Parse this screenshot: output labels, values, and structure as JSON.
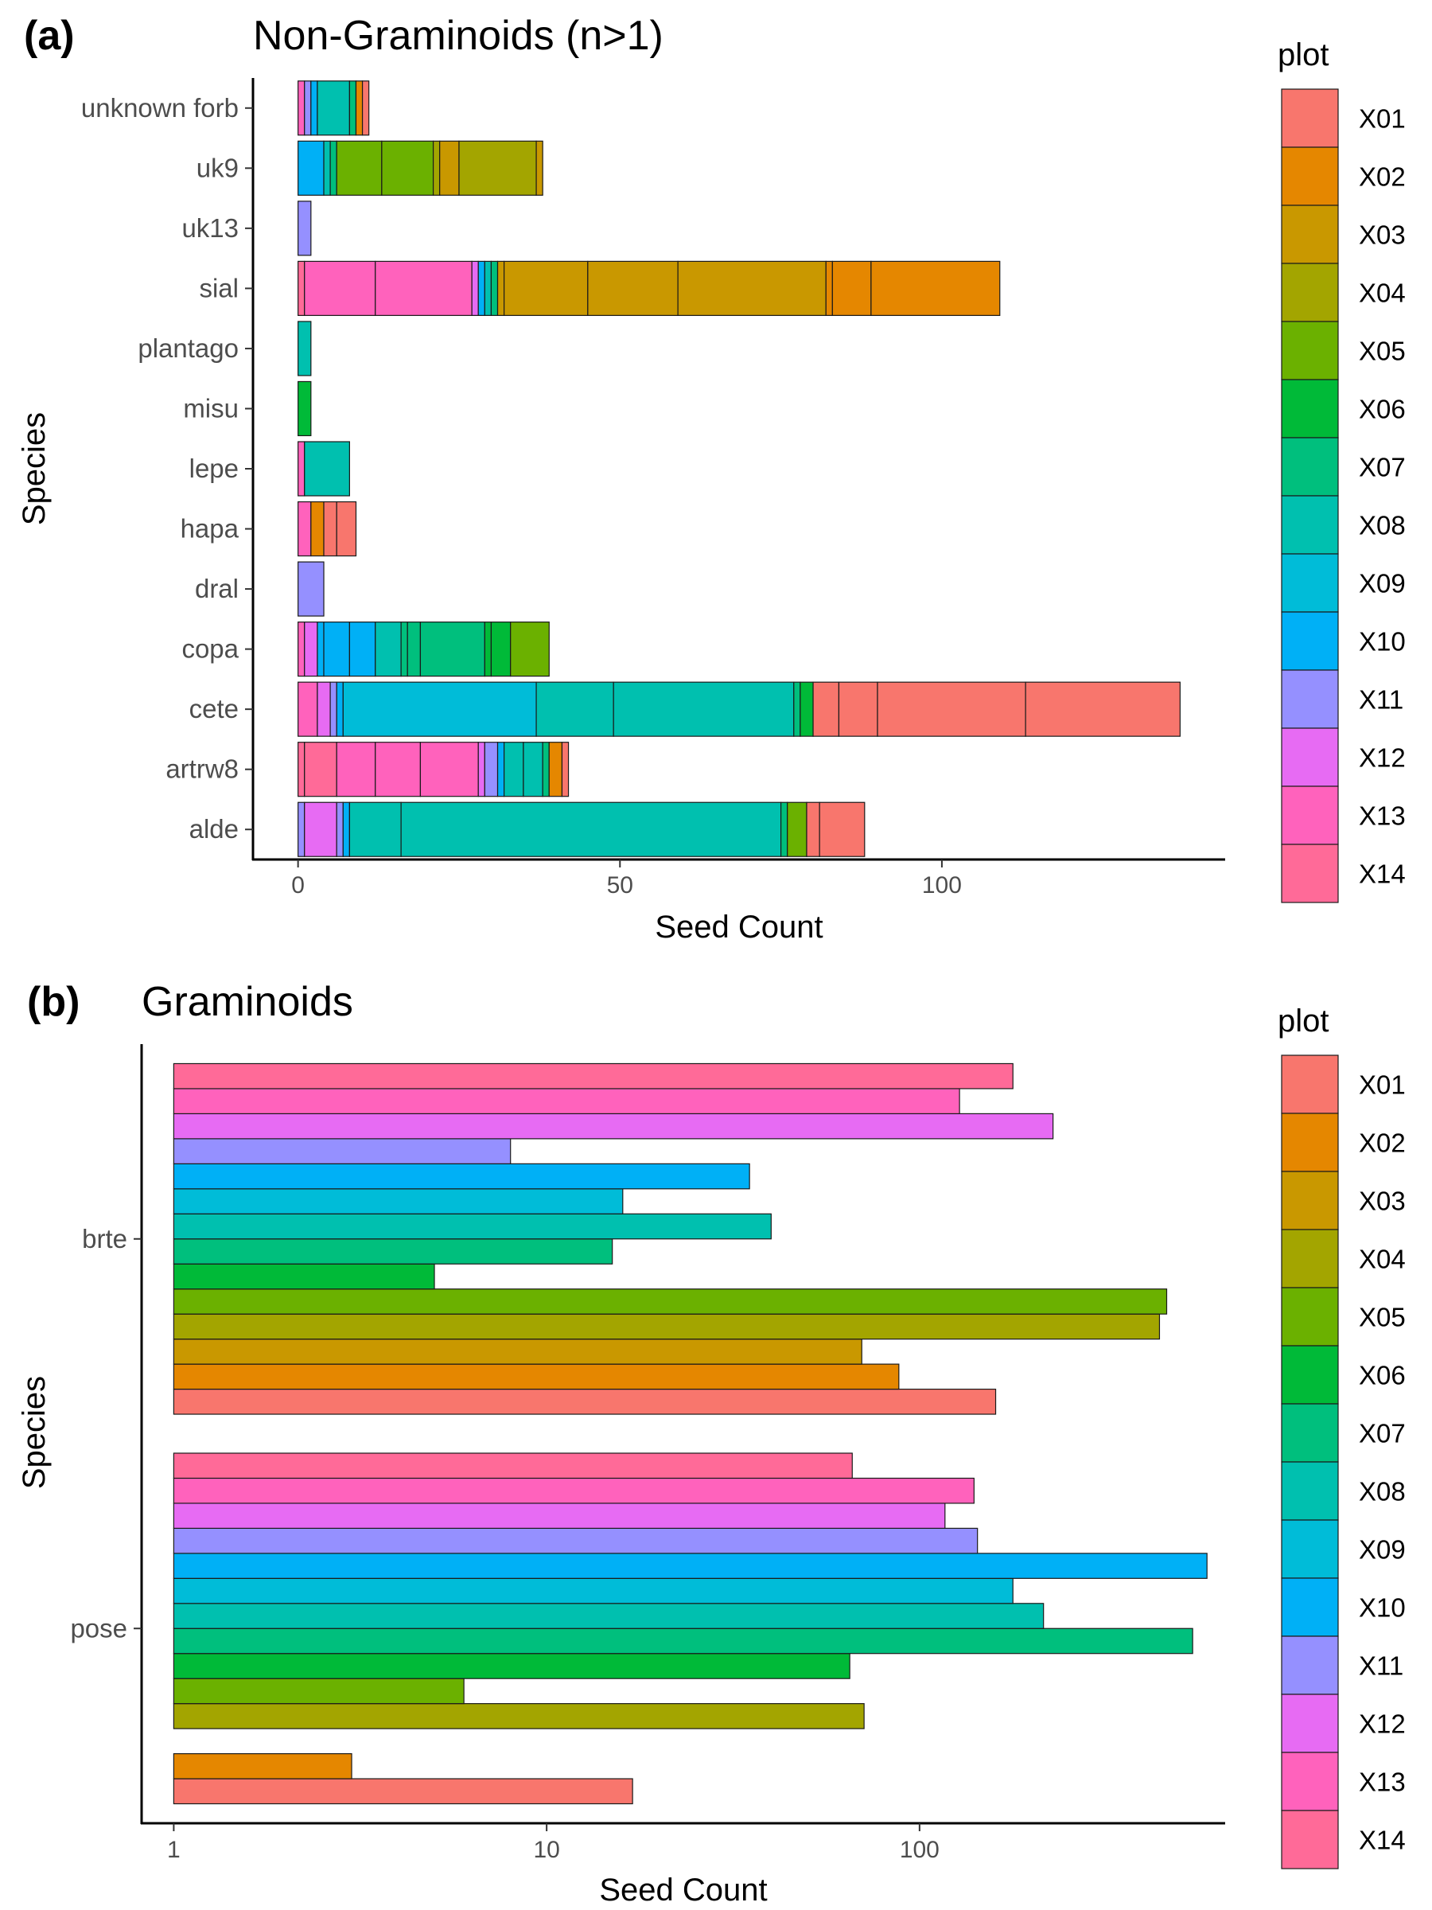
{
  "chart_data": [
    {
      "type": "bar",
      "orientation": "horizontal",
      "stacked": true,
      "tag": "(a)",
      "title": "Non-Graminoids (n>1)",
      "xlabel": "Seed Count",
      "ylabel": "Species",
      "xlim": [
        -7,
        144
      ],
      "xticks": [
        0,
        50,
        100
      ],
      "x_scale": "linear",
      "grid": false,
      "legend_position": "right",
      "legend_title": "plot",
      "categories": [
        "unknown forb",
        "uk9",
        "uk13",
        "sial",
        "plantago",
        "misu",
        "lepe",
        "hapa",
        "dral",
        "copa",
        "cete",
        "artrw8",
        "alde"
      ],
      "stacks": [
        {
          "species": "unknown forb",
          "segments": [
            {
              "plot": "X13",
              "count": 1
            },
            {
              "plot": "X11",
              "count": 1
            },
            {
              "plot": "X10",
              "count": 1
            },
            {
              "plot": "X08",
              "count": 5
            },
            {
              "plot": "X07",
              "count": 1
            },
            {
              "plot": "X02",
              "count": 1
            },
            {
              "plot": "X01",
              "count": 1
            }
          ]
        },
        {
          "species": "uk9",
          "segments": [
            {
              "plot": "X10",
              "count": 4
            },
            {
              "plot": "X08",
              "count": 1
            },
            {
              "plot": "X07",
              "count": 1
            },
            {
              "plot": "X05",
              "count": 7
            },
            {
              "plot": "X05",
              "count": 8
            },
            {
              "plot": "X04",
              "count": 1
            },
            {
              "plot": "X03",
              "count": 3
            },
            {
              "plot": "X04",
              "count": 12
            },
            {
              "plot": "X03",
              "count": 1
            }
          ]
        },
        {
          "species": "uk13",
          "segments": [
            {
              "plot": "X11",
              "count": 2
            }
          ]
        },
        {
          "species": "sial",
          "segments": [
            {
              "plot": "X14",
              "count": 1
            },
            {
              "plot": "X13",
              "count": 11
            },
            {
              "plot": "X13",
              "count": 15
            },
            {
              "plot": "X12",
              "count": 1
            },
            {
              "plot": "X10",
              "count": 1
            },
            {
              "plot": "X08",
              "count": 1
            },
            {
              "plot": "X07",
              "count": 1
            },
            {
              "plot": "X03",
              "count": 1
            },
            {
              "plot": "X03",
              "count": 13
            },
            {
              "plot": "X03",
              "count": 14
            },
            {
              "plot": "X03",
              "count": 23
            },
            {
              "plot": "X02",
              "count": 1
            },
            {
              "plot": "X02",
              "count": 6
            },
            {
              "plot": "X02",
              "count": 20
            }
          ]
        },
        {
          "species": "plantago",
          "segments": [
            {
              "plot": "X08",
              "count": 2
            }
          ]
        },
        {
          "species": "misu",
          "segments": [
            {
              "plot": "X06",
              "count": 2
            }
          ]
        },
        {
          "species": "lepe",
          "segments": [
            {
              "plot": "X13",
              "count": 1
            },
            {
              "plot": "X08",
              "count": 7
            }
          ]
        },
        {
          "species": "hapa",
          "segments": [
            {
              "plot": "X13",
              "count": 2
            },
            {
              "plot": "X02",
              "count": 2
            },
            {
              "plot": "X01",
              "count": 2
            },
            {
              "plot": "X01",
              "count": 3
            }
          ]
        },
        {
          "species": "dral",
          "segments": [
            {
              "plot": "X11",
              "count": 4
            }
          ]
        },
        {
          "species": "copa",
          "segments": [
            {
              "plot": "X13",
              "count": 1
            },
            {
              "plot": "X12",
              "count": 2
            },
            {
              "plot": "X10",
              "count": 1
            },
            {
              "plot": "X10",
              "count": 4
            },
            {
              "plot": "X10",
              "count": 4
            },
            {
              "plot": "X08",
              "count": 4
            },
            {
              "plot": "X07",
              "count": 1
            },
            {
              "plot": "X07",
              "count": 2
            },
            {
              "plot": "X07",
              "count": 10
            },
            {
              "plot": "X06",
              "count": 1
            },
            {
              "plot": "X06",
              "count": 3
            },
            {
              "plot": "X05",
              "count": 6
            }
          ]
        },
        {
          "species": "cete",
          "segments": [
            {
              "plot": "X13",
              "count": 3
            },
            {
              "plot": "X12",
              "count": 2
            },
            {
              "plot": "X11",
              "count": 1
            },
            {
              "plot": "X10",
              "count": 1
            },
            {
              "plot": "X09",
              "count": 30
            },
            {
              "plot": "X08",
              "count": 12
            },
            {
              "plot": "X08",
              "count": 28
            },
            {
              "plot": "X07",
              "count": 1
            },
            {
              "plot": "X06",
              "count": 2
            },
            {
              "plot": "X01",
              "count": 4
            },
            {
              "plot": "X01",
              "count": 6
            },
            {
              "plot": "X01",
              "count": 23
            },
            {
              "plot": "X01",
              "count": 24
            }
          ]
        },
        {
          "species": "artrw8",
          "segments": [
            {
              "plot": "X14",
              "count": 1
            },
            {
              "plot": "X14",
              "count": 5
            },
            {
              "plot": "X13",
              "count": 6
            },
            {
              "plot": "X13",
              "count": 7
            },
            {
              "plot": "X13",
              "count": 9
            },
            {
              "plot": "X12",
              "count": 1
            },
            {
              "plot": "X11",
              "count": 2
            },
            {
              "plot": "X10",
              "count": 1
            },
            {
              "plot": "X08",
              "count": 3
            },
            {
              "plot": "X08",
              "count": 3
            },
            {
              "plot": "X07",
              "count": 1
            },
            {
              "plot": "X02",
              "count": 2
            },
            {
              "plot": "X01",
              "count": 1
            }
          ]
        },
        {
          "species": "alde",
          "segments": [
            {
              "plot": "X11",
              "count": 1
            },
            {
              "plot": "X12",
              "count": 5
            },
            {
              "plot": "X11",
              "count": 1
            },
            {
              "plot": "X10",
              "count": 1
            },
            {
              "plot": "X08",
              "count": 8
            },
            {
              "plot": "X08",
              "count": 59
            },
            {
              "plot": "X07",
              "count": 1
            },
            {
              "plot": "X05",
              "count": 3
            },
            {
              "plot": "X01",
              "count": 2
            },
            {
              "plot": "X01",
              "count": 7
            }
          ]
        }
      ]
    },
    {
      "type": "bar",
      "orientation": "horizontal",
      "stacked": false,
      "tag": "(b)",
      "title": "Graminoids",
      "xlabel": "Seed Count",
      "ylabel": "Species",
      "x_scale": "log10",
      "xlim": [
        0.82,
        660
      ],
      "xticks": [
        1,
        10,
        100
      ],
      "grid": false,
      "legend_position": "right",
      "legend_title": "plot",
      "categories": [
        "pose",
        "brte"
      ],
      "series": [
        {
          "name": "X01",
          "values": [
            17,
            160
          ]
        },
        {
          "name": "X02",
          "values": [
            3,
            88
          ]
        },
        {
          "name": "X03",
          "values": [
            null,
            70
          ]
        },
        {
          "name": "X04",
          "values": [
            71,
            440
          ]
        },
        {
          "name": "X05",
          "values": [
            6,
            460
          ]
        },
        {
          "name": "X06",
          "values": [
            65,
            5
          ]
        },
        {
          "name": "X07",
          "values": [
            540,
            15
          ]
        },
        {
          "name": "X08",
          "values": [
            215,
            40
          ]
        },
        {
          "name": "X09",
          "values": [
            178,
            16
          ]
        },
        {
          "name": "X10",
          "values": [
            590,
            35
          ]
        },
        {
          "name": "X11",
          "values": [
            143,
            8
          ]
        },
        {
          "name": "X12",
          "values": [
            117,
            228
          ]
        },
        {
          "name": "X13",
          "values": [
            140,
            128
          ]
        },
        {
          "name": "X14",
          "values": [
            66,
            178
          ]
        }
      ]
    }
  ],
  "colors": {
    "X01": "#F8766D",
    "X02": "#E58700",
    "X03": "#C99800",
    "X04": "#A3A500",
    "X05": "#6BB100",
    "X06": "#00BA38",
    "X07": "#00BF7D",
    "X08": "#00C0AF",
    "X09": "#00BCD8",
    "X10": "#00B0F6",
    "X11": "#9590FF",
    "X12": "#E76BF3",
    "X13": "#FF62BC",
    "X14": "#FF6A98"
  },
  "legend": {
    "title": "plot",
    "items": [
      "X01",
      "X02",
      "X03",
      "X04",
      "X05",
      "X06",
      "X07",
      "X08",
      "X09",
      "X10",
      "X11",
      "X12",
      "X13",
      "X14"
    ]
  }
}
